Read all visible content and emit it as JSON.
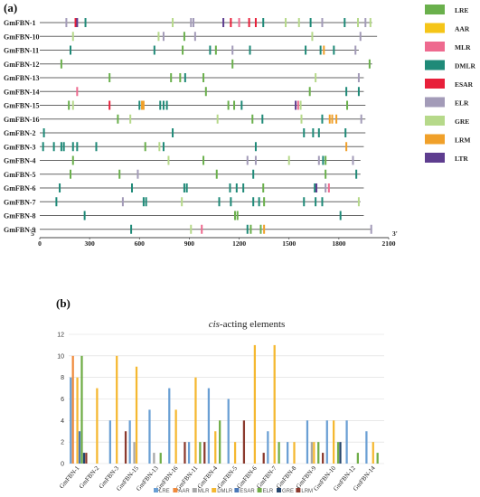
{
  "panel_a_label": "(a)",
  "panel_b_label": "(b)",
  "chart_data": [
    {
      "type": "table",
      "kind": "promoter element map",
      "axis_start_label": "5'",
      "axis_end_label": "3'",
      "xticks": [
        0,
        300,
        600,
        900,
        1200,
        1500,
        1800,
        2100
      ],
      "xlim": [
        0,
        2100
      ],
      "legend": [
        {
          "name": "LRE",
          "color": "#6ab04c"
        },
        {
          "name": "AAR",
          "color": "#f5c518"
        },
        {
          "name": "MLR",
          "color": "#ee6a8f"
        },
        {
          "name": "DMLR",
          "color": "#1f8a78"
        },
        {
          "name": "ESAR",
          "color": "#e8203a"
        },
        {
          "name": "ELR",
          "color": "#a39bb8"
        },
        {
          "name": "GRE",
          "color": "#b6d98a"
        },
        {
          "name": "LRM",
          "color": "#f0a02a"
        },
        {
          "name": "LTR",
          "color": "#5e3d8f"
        }
      ],
      "genes": [
        {
          "name": "GmFBN-1",
          "length": 2000,
          "elements": [
            {
              "pos": 160,
              "type": "ELR"
            },
            {
              "pos": 215,
              "type": "ESAR"
            },
            {
              "pos": 225,
              "type": "LTR"
            },
            {
              "pos": 275,
              "type": "DMLR"
            },
            {
              "pos": 800,
              "type": "GRE"
            },
            {
              "pos": 910,
              "type": "ELR"
            },
            {
              "pos": 925,
              "type": "ELR"
            },
            {
              "pos": 1105,
              "type": "LTR"
            },
            {
              "pos": 1150,
              "type": "ESAR"
            },
            {
              "pos": 1200,
              "type": "MLR"
            },
            {
              "pos": 1260,
              "type": "ESAR"
            },
            {
              "pos": 1300,
              "type": "ESAR"
            },
            {
              "pos": 1345,
              "type": "DMLR"
            },
            {
              "pos": 1480,
              "type": "GRE"
            },
            {
              "pos": 1560,
              "type": "GRE"
            },
            {
              "pos": 1630,
              "type": "DMLR"
            },
            {
              "pos": 1700,
              "type": "ELR"
            },
            {
              "pos": 1835,
              "type": "DMLR"
            },
            {
              "pos": 1915,
              "type": "GRE"
            },
            {
              "pos": 1960,
              "type": "ELR"
            },
            {
              "pos": 1990,
              "type": "GRE"
            }
          ]
        },
        {
          "name": "GmFBN-10",
          "length": 2030,
          "elements": [
            {
              "pos": 200,
              "type": "GRE"
            },
            {
              "pos": 715,
              "type": "GRE"
            },
            {
              "pos": 745,
              "type": "ELR"
            },
            {
              "pos": 870,
              "type": "LRE"
            },
            {
              "pos": 935,
              "type": "ELR"
            },
            {
              "pos": 1640,
              "type": "GRE"
            },
            {
              "pos": 1930,
              "type": "ELR"
            }
          ]
        },
        {
          "name": "GmFBN-11",
          "length": 1920,
          "elements": [
            {
              "pos": 185,
              "type": "DMLR"
            },
            {
              "pos": 690,
              "type": "DMLR"
            },
            {
              "pos": 860,
              "type": "LRE"
            },
            {
              "pos": 1025,
              "type": "DMLR"
            },
            {
              "pos": 1060,
              "type": "LRE"
            },
            {
              "pos": 1160,
              "type": "ELR"
            },
            {
              "pos": 1265,
              "type": "DMLR"
            },
            {
              "pos": 1600,
              "type": "DMLR"
            },
            {
              "pos": 1690,
              "type": "DMLR"
            },
            {
              "pos": 1710,
              "type": "LRM"
            },
            {
              "pos": 1770,
              "type": "DMLR"
            },
            {
              "pos": 1900,
              "type": "ELR"
            }
          ]
        },
        {
          "name": "GmFBN-12",
          "length": 2000,
          "elements": [
            {
              "pos": 130,
              "type": "LRE"
            },
            {
              "pos": 1160,
              "type": "LRE"
            },
            {
              "pos": 1985,
              "type": "LRE"
            }
          ]
        },
        {
          "name": "GmFBN-13",
          "length": 1950,
          "elements": [
            {
              "pos": 420,
              "type": "LRE"
            },
            {
              "pos": 790,
              "type": "LRE"
            },
            {
              "pos": 845,
              "type": "LRE"
            },
            {
              "pos": 875,
              "type": "DMLR"
            },
            {
              "pos": 985,
              "type": "LRE"
            },
            {
              "pos": 1660,
              "type": "GRE"
            },
            {
              "pos": 1920,
              "type": "ELR"
            }
          ]
        },
        {
          "name": "GmFBN-14",
          "length": 1950,
          "elements": [
            {
              "pos": 225,
              "type": "MLR"
            },
            {
              "pos": 1000,
              "type": "LRE"
            },
            {
              "pos": 1625,
              "type": "LRE"
            },
            {
              "pos": 1845,
              "type": "DMLR"
            },
            {
              "pos": 1920,
              "type": "DMLR"
            }
          ]
        },
        {
          "name": "GmFBN-15",
          "length": 1960,
          "elements": [
            {
              "pos": 175,
              "type": "LRE"
            },
            {
              "pos": 200,
              "type": "GRE"
            },
            {
              "pos": 420,
              "type": "ESAR"
            },
            {
              "pos": 600,
              "type": "DMLR"
            },
            {
              "pos": 615,
              "type": "LRM"
            },
            {
              "pos": 625,
              "type": "LRM"
            },
            {
              "pos": 725,
              "type": "DMLR"
            },
            {
              "pos": 745,
              "type": "DMLR"
            },
            {
              "pos": 765,
              "type": "DMLR"
            },
            {
              "pos": 1135,
              "type": "LRE"
            },
            {
              "pos": 1170,
              "type": "LRE"
            },
            {
              "pos": 1215,
              "type": "DMLR"
            },
            {
              "pos": 1540,
              "type": "LTR"
            },
            {
              "pos": 1555,
              "type": "MLR"
            },
            {
              "pos": 1570,
              "type": "GRE"
            },
            {
              "pos": 1850,
              "type": "LRE"
            }
          ]
        },
        {
          "name": "GmFBN-16",
          "length": 1960,
          "elements": [
            {
              "pos": 470,
              "type": "LRE"
            },
            {
              "pos": 545,
              "type": "GRE"
            },
            {
              "pos": 1070,
              "type": "GRE"
            },
            {
              "pos": 1280,
              "type": "LRE"
            },
            {
              "pos": 1340,
              "type": "DMLR"
            },
            {
              "pos": 1575,
              "type": "GRE"
            },
            {
              "pos": 1700,
              "type": "DMLR"
            },
            {
              "pos": 1745,
              "type": "LRM"
            },
            {
              "pos": 1760,
              "type": "LRM"
            },
            {
              "pos": 1785,
              "type": "LRM"
            },
            {
              "pos": 1935,
              "type": "ELR"
            }
          ]
        },
        {
          "name": "GmFBN-2",
          "length": 1960,
          "elements": [
            {
              "pos": 25,
              "type": "DMLR"
            },
            {
              "pos": 800,
              "type": "DMLR"
            },
            {
              "pos": 1590,
              "type": "DMLR"
            },
            {
              "pos": 1645,
              "type": "DMLR"
            },
            {
              "pos": 1680,
              "type": "DMLR"
            },
            {
              "pos": 1840,
              "type": "DMLR"
            }
          ]
        },
        {
          "name": "GmFBN-3",
          "length": 1950,
          "elements": [
            {
              "pos": 20,
              "type": "DMLR"
            },
            {
              "pos": 85,
              "type": "DMLR"
            },
            {
              "pos": 130,
              "type": "DMLR"
            },
            {
              "pos": 145,
              "type": "DMLR"
            },
            {
              "pos": 200,
              "type": "DMLR"
            },
            {
              "pos": 225,
              "type": "DMLR"
            },
            {
              "pos": 340,
              "type": "DMLR"
            },
            {
              "pos": 635,
              "type": "LRE"
            },
            {
              "pos": 720,
              "type": "GRE"
            },
            {
              "pos": 745,
              "type": "DMLR"
            },
            {
              "pos": 1300,
              "type": "DMLR"
            },
            {
              "pos": 1845,
              "type": "LRM"
            }
          ]
        },
        {
          "name": "GmFBN-4",
          "length": 1930,
          "elements": [
            {
              "pos": 200,
              "type": "LRE"
            },
            {
              "pos": 775,
              "type": "GRE"
            },
            {
              "pos": 985,
              "type": "LRE"
            },
            {
              "pos": 1250,
              "type": "ELR"
            },
            {
              "pos": 1300,
              "type": "ELR"
            },
            {
              "pos": 1500,
              "type": "GRE"
            },
            {
              "pos": 1680,
              "type": "ELR"
            },
            {
              "pos": 1705,
              "type": "DMLR"
            },
            {
              "pos": 1720,
              "type": "LRE"
            },
            {
              "pos": 1885,
              "type": "ELR"
            }
          ]
        },
        {
          "name": "GmFBN-5",
          "length": 1930,
          "elements": [
            {
              "pos": 185,
              "type": "LRE"
            },
            {
              "pos": 480,
              "type": "LRE"
            },
            {
              "pos": 590,
              "type": "ELR"
            },
            {
              "pos": 1065,
              "type": "LRE"
            },
            {
              "pos": 1285,
              "type": "DMLR"
            },
            {
              "pos": 1720,
              "type": "LRE"
            },
            {
              "pos": 1905,
              "type": "DMLR"
            }
          ]
        },
        {
          "name": "GmFBN-6",
          "length": 1950,
          "elements": [
            {
              "pos": 120,
              "type": "DMLR"
            },
            {
              "pos": 555,
              "type": "DMLR"
            },
            {
              "pos": 870,
              "type": "DMLR"
            },
            {
              "pos": 885,
              "type": "DMLR"
            },
            {
              "pos": 1145,
              "type": "DMLR"
            },
            {
              "pos": 1185,
              "type": "DMLR"
            },
            {
              "pos": 1225,
              "type": "DMLR"
            },
            {
              "pos": 1345,
              "type": "LRE"
            },
            {
              "pos": 1655,
              "type": "DMLR"
            },
            {
              "pos": 1665,
              "type": "LTR"
            },
            {
              "pos": 1720,
              "type": "ELR"
            },
            {
              "pos": 1740,
              "type": "MLR"
            }
          ]
        },
        {
          "name": "GmFBN-7",
          "length": 1930,
          "elements": [
            {
              "pos": 100,
              "type": "DMLR"
            },
            {
              "pos": 500,
              "type": "ELR"
            },
            {
              "pos": 625,
              "type": "DMLR"
            },
            {
              "pos": 640,
              "type": "DMLR"
            },
            {
              "pos": 855,
              "type": "GRE"
            },
            {
              "pos": 1080,
              "type": "DMLR"
            },
            {
              "pos": 1150,
              "type": "DMLR"
            },
            {
              "pos": 1285,
              "type": "DMLR"
            },
            {
              "pos": 1320,
              "type": "DMLR"
            },
            {
              "pos": 1350,
              "type": "LRE"
            },
            {
              "pos": 1590,
              "type": "DMLR"
            },
            {
              "pos": 1660,
              "type": "DMLR"
            },
            {
              "pos": 1700,
              "type": "DMLR"
            },
            {
              "pos": 1920,
              "type": "GRE"
            }
          ]
        },
        {
          "name": "GmFBN-8",
          "length": 1950,
          "elements": [
            {
              "pos": 270,
              "type": "DMLR"
            },
            {
              "pos": 1175,
              "type": "LRE"
            },
            {
              "pos": 1190,
              "type": "LRE"
            },
            {
              "pos": 1810,
              "type": "DMLR"
            }
          ]
        },
        {
          "name": "GmFBN-9",
          "length": 2000,
          "elements": [
            {
              "pos": 550,
              "type": "DMLR"
            },
            {
              "pos": 910,
              "type": "GRE"
            },
            {
              "pos": 975,
              "type": "MLR"
            },
            {
              "pos": 1250,
              "type": "DMLR"
            },
            {
              "pos": 1270,
              "type": "LRE"
            },
            {
              "pos": 1330,
              "type": "LRE"
            },
            {
              "pos": 1350,
              "type": "LRM"
            },
            {
              "pos": 1995,
              "type": "ELR"
            }
          ]
        }
      ]
    },
    {
      "type": "bar",
      "title": "cis-acting elements",
      "title_italic_part": "cis",
      "title_rest": "-acting elements",
      "ylim": [
        0,
        12
      ],
      "yticks": [
        0,
        2,
        4,
        6,
        8,
        10,
        12
      ],
      "categories": [
        "GmFBN-1",
        "GmFBN-2",
        "GmFBN-3",
        "GmFBN-15",
        "GmFBN-13",
        "GmFBN-16",
        "GmFBN-11",
        "GmFBN-4",
        "GmFBN-5",
        "GmFBN-6",
        "GmFBN-7",
        "GmFBN-8",
        "GmFBN-9",
        "GmFBN-10",
        "GmFBN-12",
        "GmFBN-14"
      ],
      "series": [
        {
          "name": "LRE",
          "color": "#6a9fd4",
          "values": [
            8,
            0,
            4,
            4,
            5,
            7,
            2,
            7,
            6,
            0,
            3,
            2,
            4,
            4,
            4,
            3
          ]
        },
        {
          "name": "AAR",
          "color": "#f08a3c",
          "values": [
            10,
            0,
            0,
            0,
            0,
            0,
            0,
            0,
            0,
            0,
            0,
            0,
            0,
            0,
            0,
            0
          ]
        },
        {
          "name": "MLR",
          "color": "#a8a8a8",
          "values": [
            0,
            0,
            0,
            2,
            1,
            0,
            0,
            0,
            0,
            0,
            0,
            0,
            2,
            0,
            0,
            0
          ]
        },
        {
          "name": "DMLR",
          "color": "#f5b830",
          "values": [
            8,
            7,
            10,
            9,
            0,
            5,
            8,
            3,
            2,
            11,
            11,
            2,
            2,
            4,
            0,
            2
          ]
        },
        {
          "name": "ESAR",
          "color": "#4a78b8",
          "values": [
            3,
            0,
            0,
            0,
            0,
            0,
            0,
            0,
            0,
            0,
            0,
            0,
            0,
            0,
            0,
            0
          ]
        },
        {
          "name": "ELR",
          "color": "#70ad47",
          "values": [
            10,
            0,
            0,
            0,
            1,
            0,
            2,
            4,
            0,
            0,
            2,
            0,
            2,
            2,
            1,
            1
          ]
        },
        {
          "name": "GRE",
          "color": "#26466d",
          "values": [
            1,
            0,
            0,
            0,
            0,
            0,
            0,
            0,
            0,
            0,
            0,
            0,
            0,
            2,
            0,
            0
          ]
        },
        {
          "name": "LRM",
          "color": "#8b3a2e",
          "values": [
            1,
            0,
            3,
            0,
            0,
            2,
            2,
            0,
            4,
            1,
            0,
            0,
            1,
            0,
            0,
            0
          ]
        }
      ]
    }
  ]
}
